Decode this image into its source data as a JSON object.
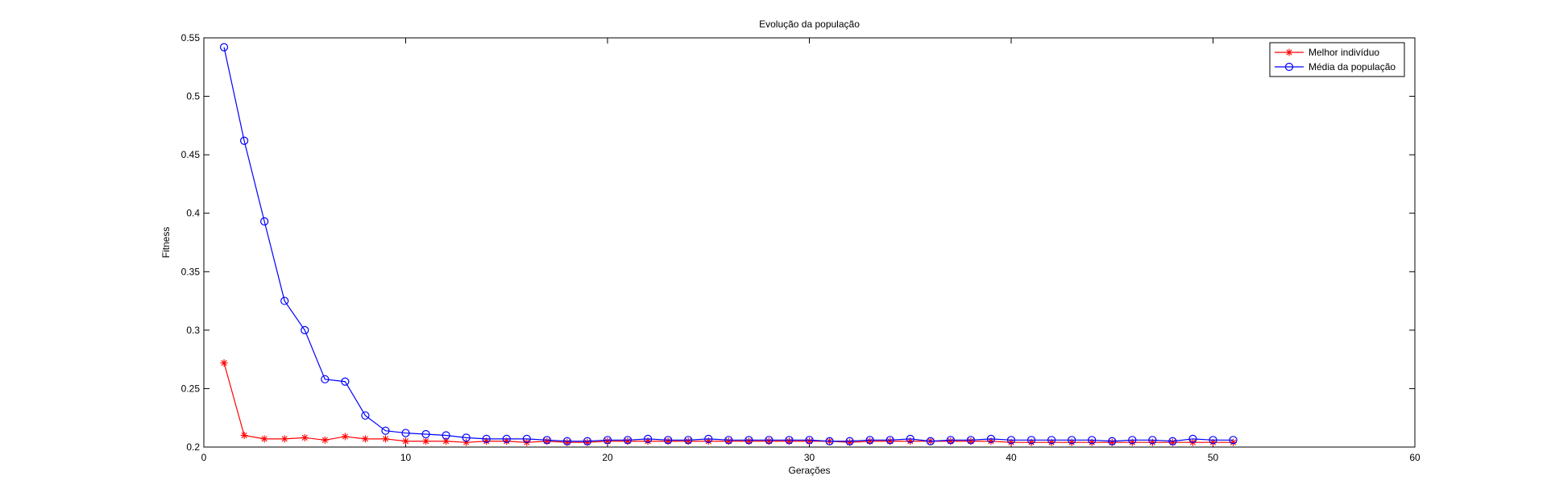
{
  "chart_data": {
    "type": "line",
    "title": "Evolução da população",
    "xlabel": "Gerações",
    "ylabel": "Fitness",
    "xlim": [
      0,
      60
    ],
    "ylim": [
      0.2,
      0.55
    ],
    "xticks": [
      0,
      10,
      20,
      30,
      40,
      50,
      60
    ],
    "yticks": [
      0.2,
      0.25,
      0.3,
      0.35,
      0.4,
      0.45,
      0.5,
      0.55
    ],
    "xtick_labels": [
      "0",
      "10",
      "20",
      "30",
      "40",
      "50",
      "60"
    ],
    "ytick_labels": [
      "0.2",
      "0.25",
      "0.3",
      "0.35",
      "0.4",
      "0.45",
      "0.5",
      "0.55"
    ],
    "grid": false,
    "legend_position": "top-right",
    "x": [
      1,
      2,
      3,
      4,
      5,
      6,
      7,
      8,
      9,
      10,
      11,
      12,
      13,
      14,
      15,
      16,
      17,
      18,
      19,
      20,
      21,
      22,
      23,
      24,
      25,
      26,
      27,
      28,
      29,
      30,
      31,
      32,
      33,
      34,
      35,
      36,
      37,
      38,
      39,
      40,
      41,
      42,
      43,
      44,
      45,
      46,
      47,
      48,
      49,
      50,
      51
    ],
    "series": [
      {
        "name": "Melhor indivíduo",
        "color": "#ff0000",
        "marker": "asterisk",
        "values": [
          0.272,
          0.21,
          0.207,
          0.207,
          0.208,
          0.206,
          0.209,
          0.207,
          0.207,
          0.205,
          0.205,
          0.205,
          0.204,
          0.205,
          0.205,
          0.204,
          0.205,
          0.204,
          0.204,
          0.205,
          0.205,
          0.205,
          0.205,
          0.205,
          0.205,
          0.205,
          0.205,
          0.205,
          0.205,
          0.205,
          0.205,
          0.204,
          0.205,
          0.205,
          0.205,
          0.205,
          0.205,
          0.205,
          0.205,
          0.204,
          0.204,
          0.204,
          0.204,
          0.204,
          0.204,
          0.204,
          0.204,
          0.204,
          0.204,
          0.204,
          0.204
        ]
      },
      {
        "name": "Média da população",
        "color": "#0000ff",
        "marker": "circle",
        "values": [
          0.542,
          0.462,
          0.393,
          0.325,
          0.3,
          0.258,
          0.256,
          0.227,
          0.214,
          0.212,
          0.211,
          0.21,
          0.208,
          0.207,
          0.207,
          0.207,
          0.206,
          0.205,
          0.205,
          0.206,
          0.206,
          0.207,
          0.206,
          0.206,
          0.207,
          0.206,
          0.206,
          0.206,
          0.206,
          0.206,
          0.205,
          0.205,
          0.206,
          0.206,
          0.207,
          0.205,
          0.206,
          0.206,
          0.207,
          0.206,
          0.206,
          0.206,
          0.206,
          0.206,
          0.205,
          0.206,
          0.206,
          0.205,
          0.207,
          0.206,
          0.206
        ]
      }
    ]
  }
}
